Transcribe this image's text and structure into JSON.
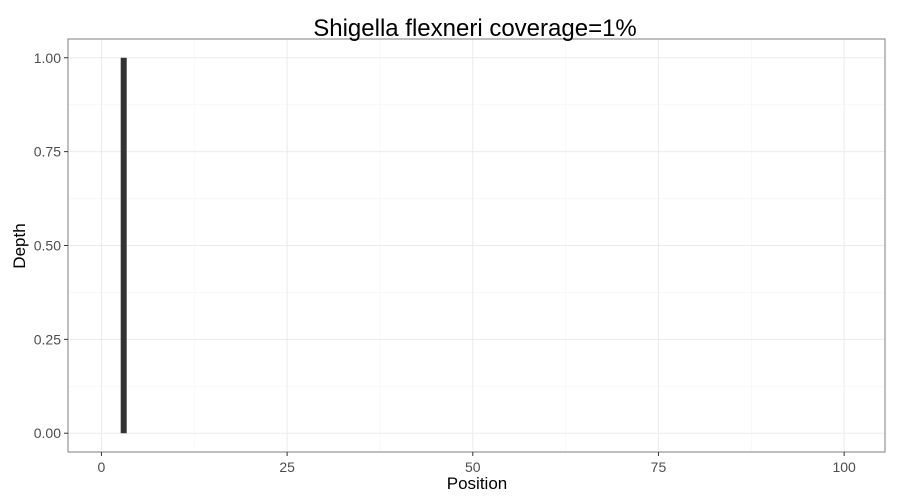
{
  "chart_data": {
    "type": "bar",
    "title": "Shigella flexneri coverage=1%",
    "xlabel": "Position",
    "ylabel": "Depth",
    "xlim": [
      -4.5,
      105.5
    ],
    "ylim": [
      -0.05,
      1.05
    ],
    "x_ticks": [
      0,
      25,
      50,
      75,
      100
    ],
    "x_tick_labels": [
      "0",
      "25",
      "50",
      "75",
      "100"
    ],
    "y_ticks": [
      0,
      0.25,
      0.5,
      0.75,
      1
    ],
    "y_tick_labels": [
      "0.00",
      "0.25",
      "0.50",
      "0.75",
      "1.00"
    ],
    "grid": true,
    "bars": [
      {
        "x": 3,
        "y": 1
      }
    ],
    "colors": {
      "bar": "#333333",
      "panel_background": "#ffffff",
      "grid_major": "#ebebeb",
      "panel_border": "#7f7f7f"
    }
  }
}
